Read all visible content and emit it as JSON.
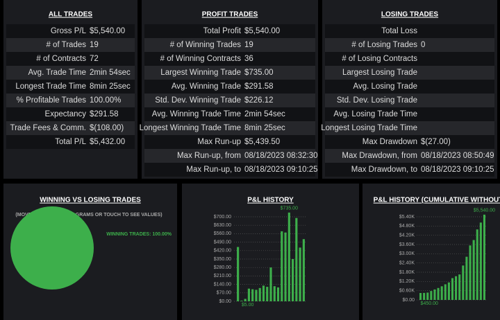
{
  "panels": [
    {
      "title": "ALL TRADES",
      "rows": [
        {
          "label": "Gross P/L",
          "value": "$5,540.00"
        },
        {
          "label": "# of Trades",
          "value": "19"
        },
        {
          "label": "# of Contracts",
          "value": "72"
        },
        {
          "label": "Avg. Trade Time",
          "value": "2min 54sec"
        },
        {
          "label": "Longest Trade Time",
          "value": "8min 25sec"
        },
        {
          "label": "% Profitable Trades",
          "value": "100.00%"
        },
        {
          "label": "Expectancy",
          "value": "$291.58"
        },
        {
          "label": "Trade Fees & Comm.",
          "value": "$(108.00)"
        },
        {
          "label": "Total P/L",
          "value": "$5,432.00"
        }
      ]
    },
    {
      "title": "PROFIT TRADES",
      "rows": [
        {
          "label": "Total Profit",
          "value": "$5,540.00"
        },
        {
          "label": "# of Winning Trades",
          "value": "19"
        },
        {
          "label": "# of Winning Contracts",
          "value": "36"
        },
        {
          "label": "Largest Winning Trade",
          "value": "$735.00"
        },
        {
          "label": "Avg. Winning Trade",
          "value": "$291.58"
        },
        {
          "label": "Std. Dev. Winning Trade",
          "value": "$226.12"
        },
        {
          "label": "Avg. Winning Trade Time",
          "value": "2min 54sec"
        },
        {
          "label": "Longest Winning Trade Time",
          "value": "8min 25sec"
        },
        {
          "label": "Max Run-up",
          "value": "$5,439.50"
        },
        {
          "label": "Max Run-up, from",
          "value": "08/18/2023 08:32:30"
        },
        {
          "label": "Max Run-up, to",
          "value": "08/18/2023 09:10:25"
        }
      ]
    },
    {
      "title": "LOSING TRADES",
      "rows": [
        {
          "label": "Total Loss"
        },
        {
          "label": "# of Losing Trades",
          "value": "0"
        },
        {
          "label": "# of Losing Contracts"
        },
        {
          "label": "Largest Losing Trade"
        },
        {
          "label": "Avg. Losing Trade"
        },
        {
          "label": "Std. Dev. Losing Trade"
        },
        {
          "label": "Avg. Losing Trade Time"
        },
        {
          "label": "Longest Losing Trade Time"
        },
        {
          "label": "Max Drawdown",
          "value": "$(27.00)"
        },
        {
          "label": "Max Drawdown, from",
          "value": "08/18/2023 08:50:49"
        },
        {
          "label": "Max Drawdown, to",
          "value": "08/18/2023 09:10:25"
        }
      ]
    }
  ],
  "chart_data": [
    {
      "type": "pie",
      "title": "WINNING VS LOSING TRADES",
      "subtitle": "(MOVE MOUSE OVER DIAGRAMS OR TOUCH TO SEE VALUES)",
      "values": [
        100
      ],
      "value_labels": [
        "WINNING TRADES: 100.00%"
      ],
      "color": "#3daf4b"
    },
    {
      "type": "bar",
      "title": "P&L HISTORY",
      "color": "#3daf4b",
      "grid": true,
      "values": [
        450,
        5,
        20,
        105,
        100,
        95,
        110,
        130,
        120,
        280,
        125,
        115,
        580,
        570,
        735,
        350,
        690,
        445,
        515
      ],
      "value_labels": [
        null,
        "$5.00",
        null,
        null,
        null,
        null,
        null,
        null,
        null,
        null,
        null,
        null,
        null,
        null,
        "$735.00",
        null,
        null,
        null,
        null
      ],
      "ylim": [
        0,
        700
      ],
      "yticks": [
        {
          "value": 0,
          "label": "$0.00"
        },
        {
          "value": 70,
          "label": "$70.00"
        },
        {
          "value": 140,
          "label": "$140.00"
        },
        {
          "value": 210,
          "label": "$210.00"
        },
        {
          "value": 280,
          "label": "$280.00"
        },
        {
          "value": 350,
          "label": "$350.00"
        },
        {
          "value": 420,
          "label": "$420.00"
        },
        {
          "value": 490,
          "label": "$490.00"
        },
        {
          "value": 560,
          "label": "$560.00"
        },
        {
          "value": 630,
          "label": "$630.00"
        },
        {
          "value": 700,
          "label": "$700.00"
        }
      ]
    },
    {
      "type": "bar",
      "title": "P&L HISTORY (CUMULATIVE WITHOUT",
      "color": "#3daf4b",
      "grid": true,
      "values": [
        450,
        455,
        475,
        580,
        680,
        775,
        885,
        1015,
        1135,
        1415,
        1540,
        1655,
        2235,
        2805,
        3540,
        3890,
        4580,
        5025,
        5540
      ],
      "value_labels": [
        "$450.00",
        null,
        null,
        null,
        null,
        null,
        null,
        null,
        null,
        null,
        null,
        null,
        null,
        null,
        null,
        null,
        null,
        null,
        "$5,540.00"
      ],
      "ylim": [
        0,
        5400
      ],
      "yticks": [
        {
          "value": 0,
          "label": "$0.00"
        },
        {
          "value": 600,
          "label": "$0.60K"
        },
        {
          "value": 1200,
          "label": "$1.20K"
        },
        {
          "value": 1800,
          "label": "$1.80K"
        },
        {
          "value": 2400,
          "label": "$2.40K"
        },
        {
          "value": 3000,
          "label": "$3.00K"
        },
        {
          "value": 3600,
          "label": "$3.60K"
        },
        {
          "value": 4200,
          "label": "$4.20K"
        },
        {
          "value": 4800,
          "label": "$4.80K"
        },
        {
          "value": 5400,
          "label": "$5.40K"
        }
      ]
    }
  ]
}
